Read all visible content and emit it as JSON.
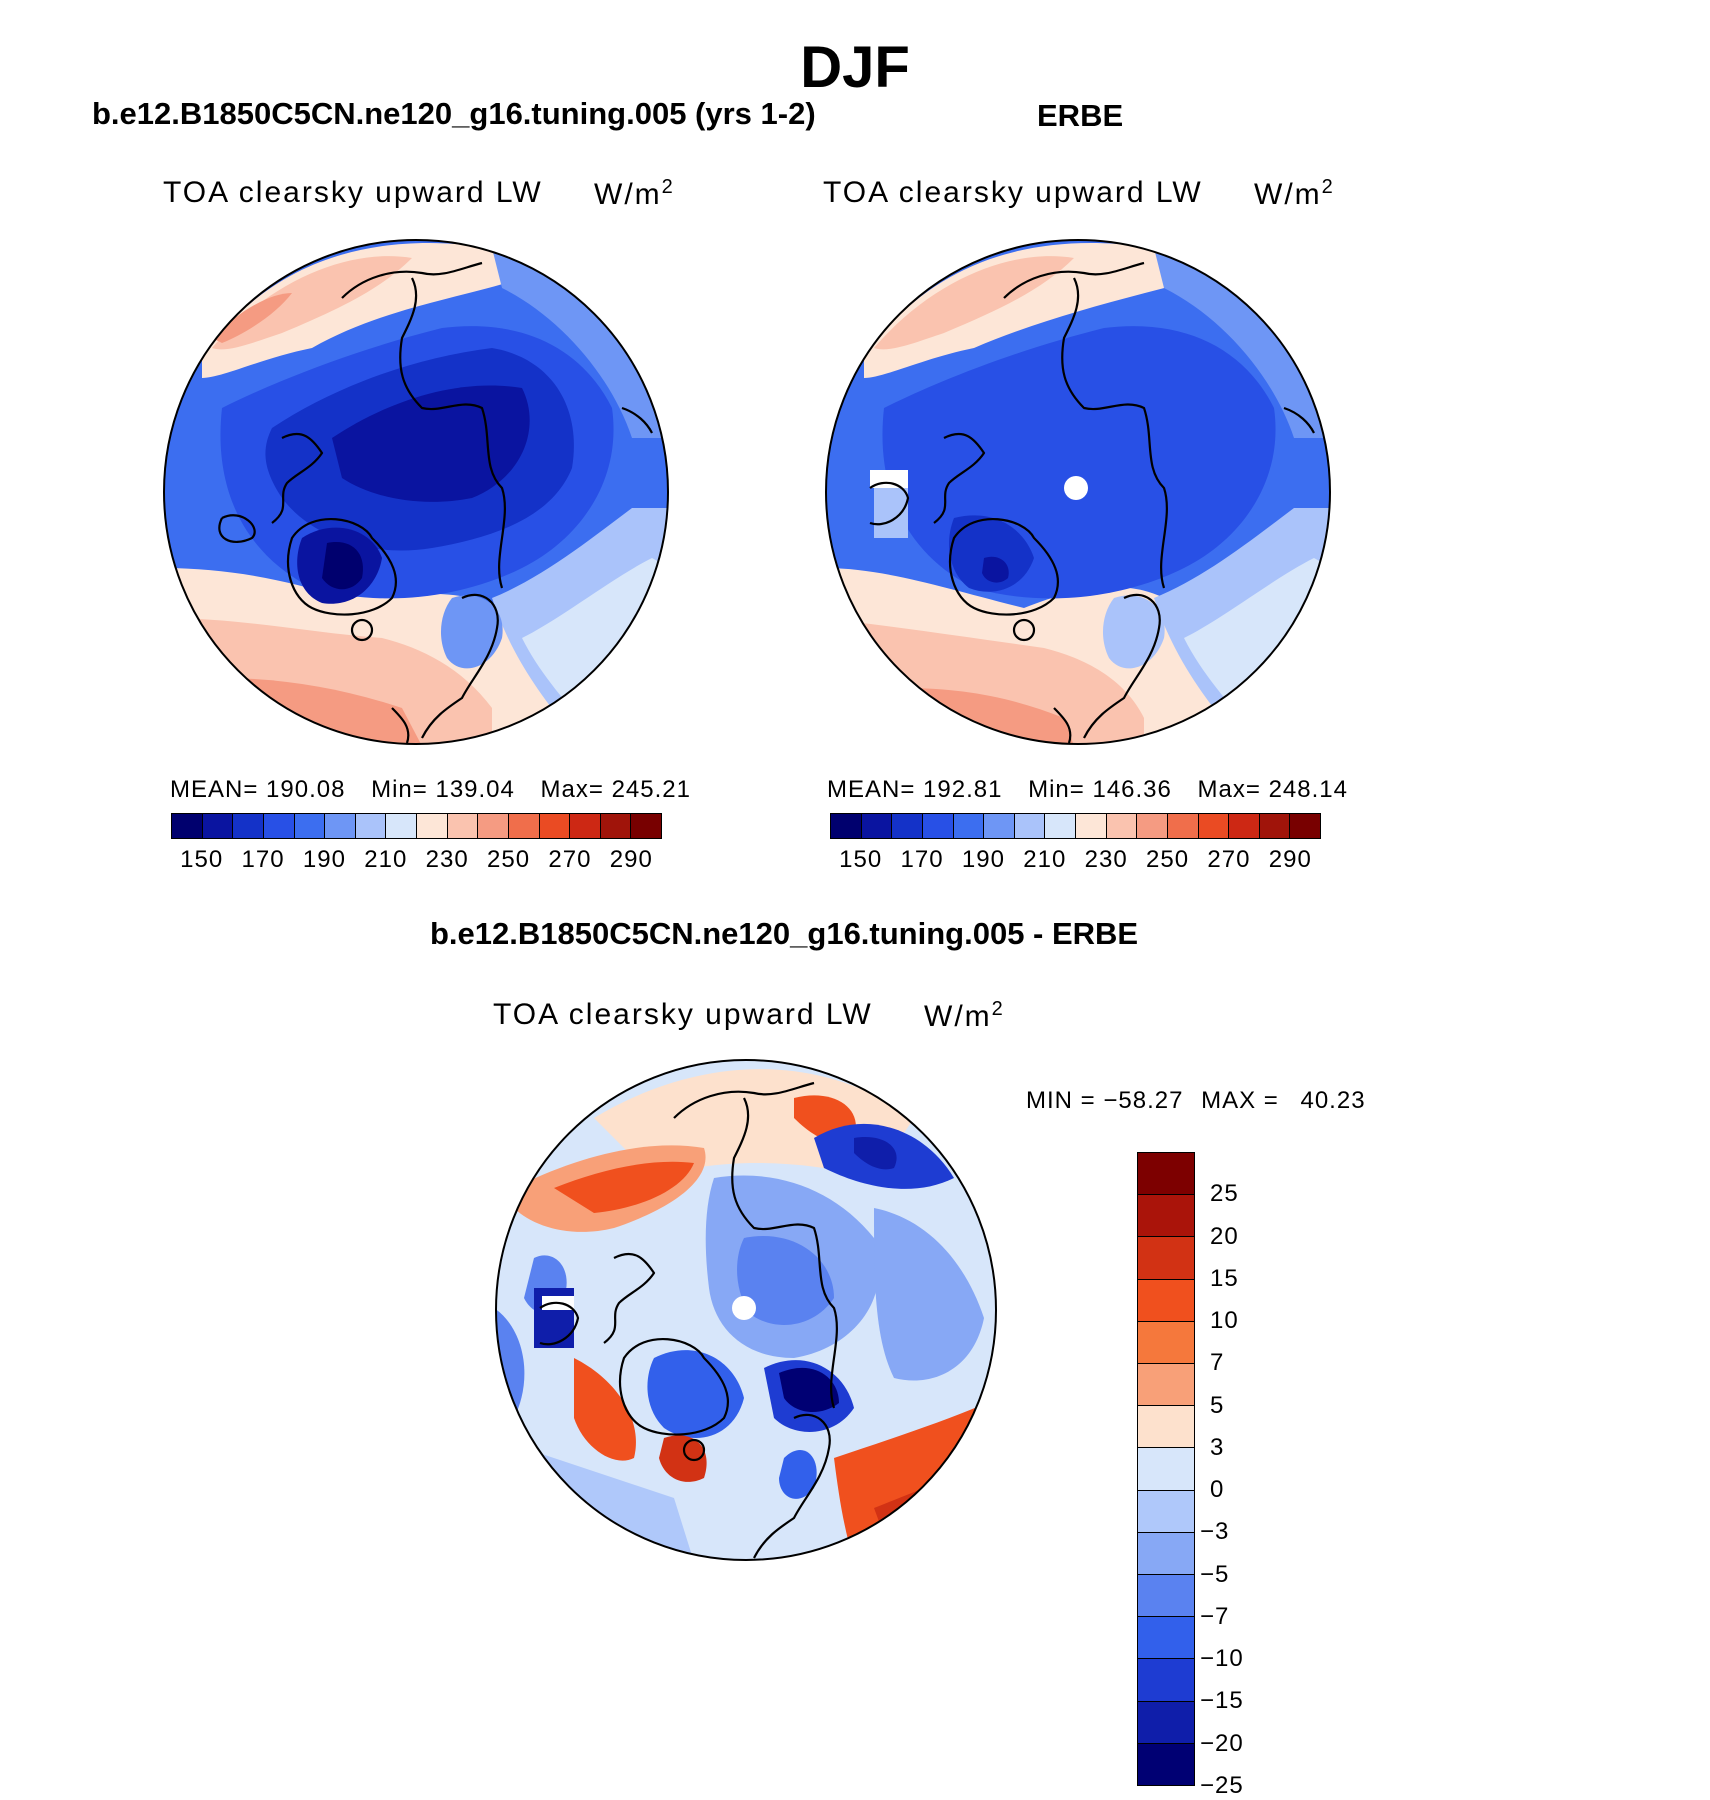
{
  "title": "DJF",
  "panels": [
    {
      "id": "model",
      "title": "b.e12.B1850C5CN.ne120_g16.tuning.005 (yrs 1-2)",
      "variable": "TOA clearsky upward LW",
      "units": "W/m",
      "units_exp": "2",
      "mean_label": "MEAN=",
      "mean": "190.08",
      "min_label": "Min=",
      "min": "139.04",
      "max_label": "Max=",
      "max": "245.21"
    },
    {
      "id": "obs",
      "title": "ERBE",
      "variable": "TOA clearsky upward LW",
      "units": "W/m",
      "units_exp": "2",
      "mean_label": "MEAN=",
      "mean": "192.81",
      "min_label": "Min=",
      "min": "146.36",
      "max_label": "Max=",
      "max": "248.14"
    }
  ],
  "diff_panel": {
    "title": "b.e12.B1850C5CN.ne120_g16.tuning.005 - ERBE",
    "variable": "TOA clearsky upward LW",
    "units": "W/m",
    "units_exp": "2",
    "min_label": "MIN =",
    "min": "−58.27",
    "max_label": "MAX =",
    "max": "40.23"
  },
  "chart_data": [
    {
      "type": "heatmap",
      "projection": "north polar stereographic",
      "title": "b.e12.B1850C5CN.ne120_g16.tuning.005 (yrs 1-2)",
      "variable": "TOA clearsky upward LW",
      "units": "W/m2",
      "stats": {
        "mean": 190.08,
        "min": 139.04,
        "max": 245.21
      },
      "colorbar_levels": [
        150,
        160,
        170,
        180,
        190,
        200,
        210,
        220,
        230,
        240,
        250,
        260,
        270,
        280,
        290
      ],
      "colorbar_tick_labels": [
        "150",
        "170",
        "190",
        "210",
        "230",
        "250",
        "270",
        "290"
      ]
    },
    {
      "type": "heatmap",
      "projection": "north polar stereographic",
      "title": "ERBE",
      "variable": "TOA clearsky upward LW",
      "units": "W/m2",
      "stats": {
        "mean": 192.81,
        "min": 146.36,
        "max": 248.14
      },
      "colorbar_levels": [
        150,
        160,
        170,
        180,
        190,
        200,
        210,
        220,
        230,
        240,
        250,
        260,
        270,
        280,
        290
      ],
      "colorbar_tick_labels": [
        "150",
        "170",
        "190",
        "210",
        "230",
        "250",
        "270",
        "290"
      ]
    },
    {
      "type": "heatmap",
      "projection": "north polar stereographic",
      "title": "b.e12.B1850C5CN.ne120_g16.tuning.005 - ERBE",
      "variable": "TOA clearsky upward LW",
      "units": "W/m2",
      "stats": {
        "min": -58.27,
        "max": 40.23
      },
      "colorbar_levels": [
        25,
        20,
        15,
        10,
        7,
        5,
        3,
        0,
        -3,
        -5,
        -7,
        -10,
        -15,
        -20,
        -25
      ],
      "colorbar_tick_labels": [
        "25",
        "20",
        "15",
        "10",
        "7",
        "5",
        "3",
        "0",
        "−3",
        "−5",
        "−7",
        "−10",
        "−15",
        "−20",
        "−25"
      ]
    }
  ],
  "colors": {
    "abs_scale": [
      "#00006e",
      "#0a14a0",
      "#1432c8",
      "#2850e6",
      "#3c6ef0",
      "#6e96f5",
      "#aac3fa",
      "#d7e6fa",
      "#fde6d7",
      "#fac3af",
      "#f59b82",
      "#f06e4b",
      "#ea4b23",
      "#cd2814",
      "#a0140a",
      "#780000"
    ],
    "diff_scale": [
      "#7d0000",
      "#aa140a",
      "#d23214",
      "#f0501e",
      "#f5783c",
      "#f8a078",
      "#fde1cd",
      "#d7e6fa",
      "#afc8fa",
      "#87a8f5",
      "#5a82f0",
      "#3260eb",
      "#1e3cd2",
      "#0f1eaa",
      "#000073"
    ],
    "mask": "#ffffff"
  }
}
